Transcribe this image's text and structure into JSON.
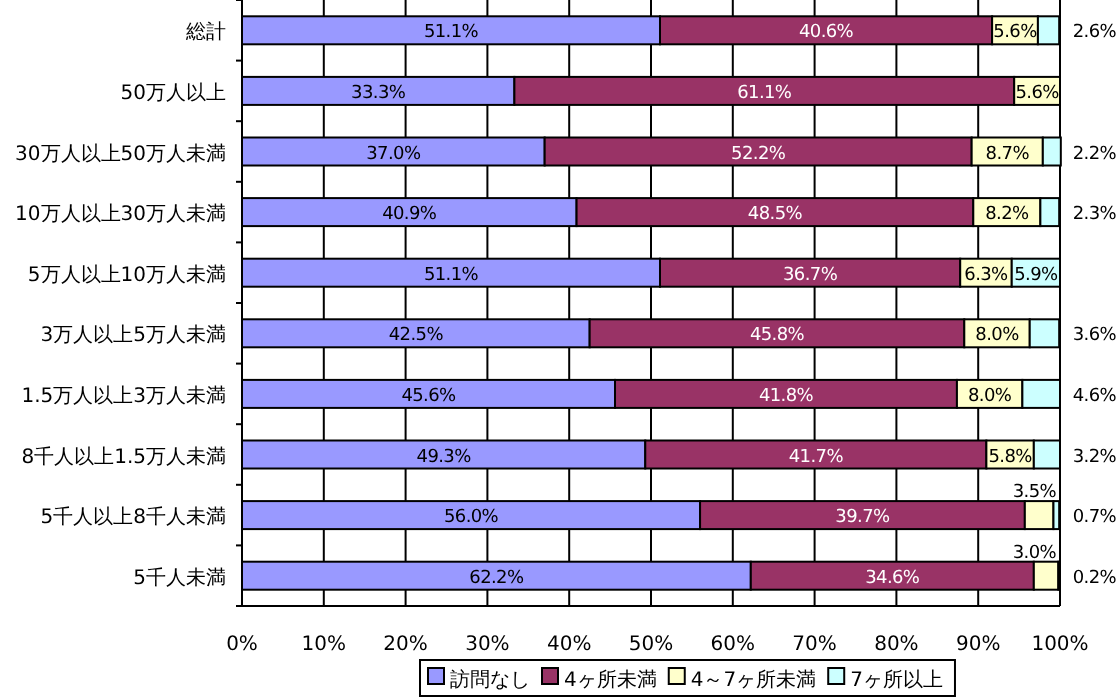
{
  "chart_data": {
    "type": "bar",
    "orientation": "horizontal",
    "stacked": true,
    "categories": [
      "総計",
      "50万人以上",
      "30万人以上50万人未満",
      "10万人以上30万人未満",
      "5万人以上10万人未満",
      "3万人以上5万人未満",
      "1.5万人以上3万人未満",
      "8千人以上1.5万人未満",
      "5千人以上8千人未満",
      "5千人未満"
    ],
    "series": [
      {
        "name": "訪問なし",
        "color": "#9999ff",
        "values": [
          51.1,
          33.3,
          37.0,
          40.9,
          51.1,
          42.5,
          45.6,
          49.3,
          56.0,
          62.2
        ],
        "value_labels": [
          "51.1%",
          "33.3%",
          "37.0%",
          "40.9%",
          "51.1%",
          "42.5%",
          "45.6%",
          "49.3%",
          "56.0%",
          "62.2%"
        ]
      },
      {
        "name": "4ヶ所未満",
        "color": "#993366",
        "values": [
          40.6,
          61.1,
          52.2,
          48.5,
          36.7,
          45.8,
          41.8,
          41.7,
          39.7,
          34.6
        ],
        "value_labels": [
          "40.6%",
          "61.1%",
          "52.2%",
          "48.5%",
          "36.7%",
          "45.8%",
          "41.8%",
          "41.7%",
          "39.7%",
          "34.6%"
        ]
      },
      {
        "name": "4～7ヶ所未満",
        "color": "#ffffcc",
        "values": [
          5.6,
          5.6,
          8.7,
          8.2,
          6.3,
          8.0,
          8.0,
          5.8,
          3.5,
          3.0
        ],
        "value_labels": [
          "5.6%",
          "5.6%",
          "8.7%",
          "8.2%",
          "6.3%",
          "8.0%",
          "8.0%",
          "5.8%",
          "3.5%",
          "3.0%"
        ]
      },
      {
        "name": "7ヶ所以上",
        "color": "#ccffff",
        "values": [
          2.6,
          0,
          2.2,
          2.3,
          5.9,
          3.6,
          4.6,
          3.2,
          0.7,
          0.2
        ],
        "value_labels": [
          "2.6%",
          null,
          "2.2%",
          "2.3%",
          "5.9%",
          "3.6%",
          "4.6%",
          "3.2%",
          "0.7%",
          "0.2%"
        ]
      }
    ],
    "xlim": [
      0,
      100
    ],
    "xticks": [
      {
        "value": 0,
        "label": "0%"
      },
      {
        "value": 10,
        "label": "10%"
      },
      {
        "value": 20,
        "label": "20%"
      },
      {
        "value": 30,
        "label": "30%"
      },
      {
        "value": 40,
        "label": "40%"
      },
      {
        "value": 50,
        "label": "50%"
      },
      {
        "value": 60,
        "label": "60%"
      },
      {
        "value": 70,
        "label": "70%"
      },
      {
        "value": 80,
        "label": "80%"
      },
      {
        "value": 90,
        "label": "90%"
      },
      {
        "value": 100,
        "label": "100%"
      }
    ],
    "grid": "x",
    "legend": "bottom"
  }
}
